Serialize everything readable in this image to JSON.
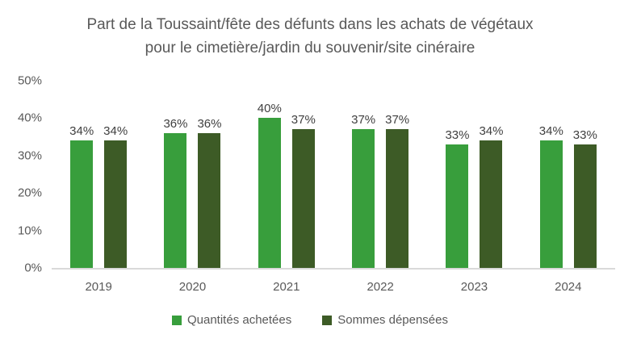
{
  "chart_data": {
    "type": "bar",
    "title": "Part de la Toussaint/fête des défunts dans les achats de végétaux pour le cimetière/jardin du souvenir/site cinéraire",
    "categories": [
      "2019",
      "2020",
      "2021",
      "2022",
      "2023",
      "2024"
    ],
    "series": [
      {
        "name": "Quantités achetées",
        "color": "#389E3C",
        "values": [
          34,
          36,
          40,
          37,
          33,
          34
        ]
      },
      {
        "name": "Sommes dépensées",
        "color": "#3D5B26",
        "values": [
          34,
          36,
          37,
          37,
          34,
          33
        ]
      }
    ],
    "value_suffix": "%",
    "ylim": [
      0,
      50
    ],
    "yticks": [
      "0%",
      "10%",
      "20%",
      "30%",
      "40%",
      "50%"
    ],
    "xlabel": "",
    "ylabel": "",
    "grid": false,
    "legend_position": "bottom",
    "axis_line_color": "#D9D9D9",
    "title_color": "#595959",
    "tick_label_color": "#595959",
    "value_label_color": "#404040"
  }
}
